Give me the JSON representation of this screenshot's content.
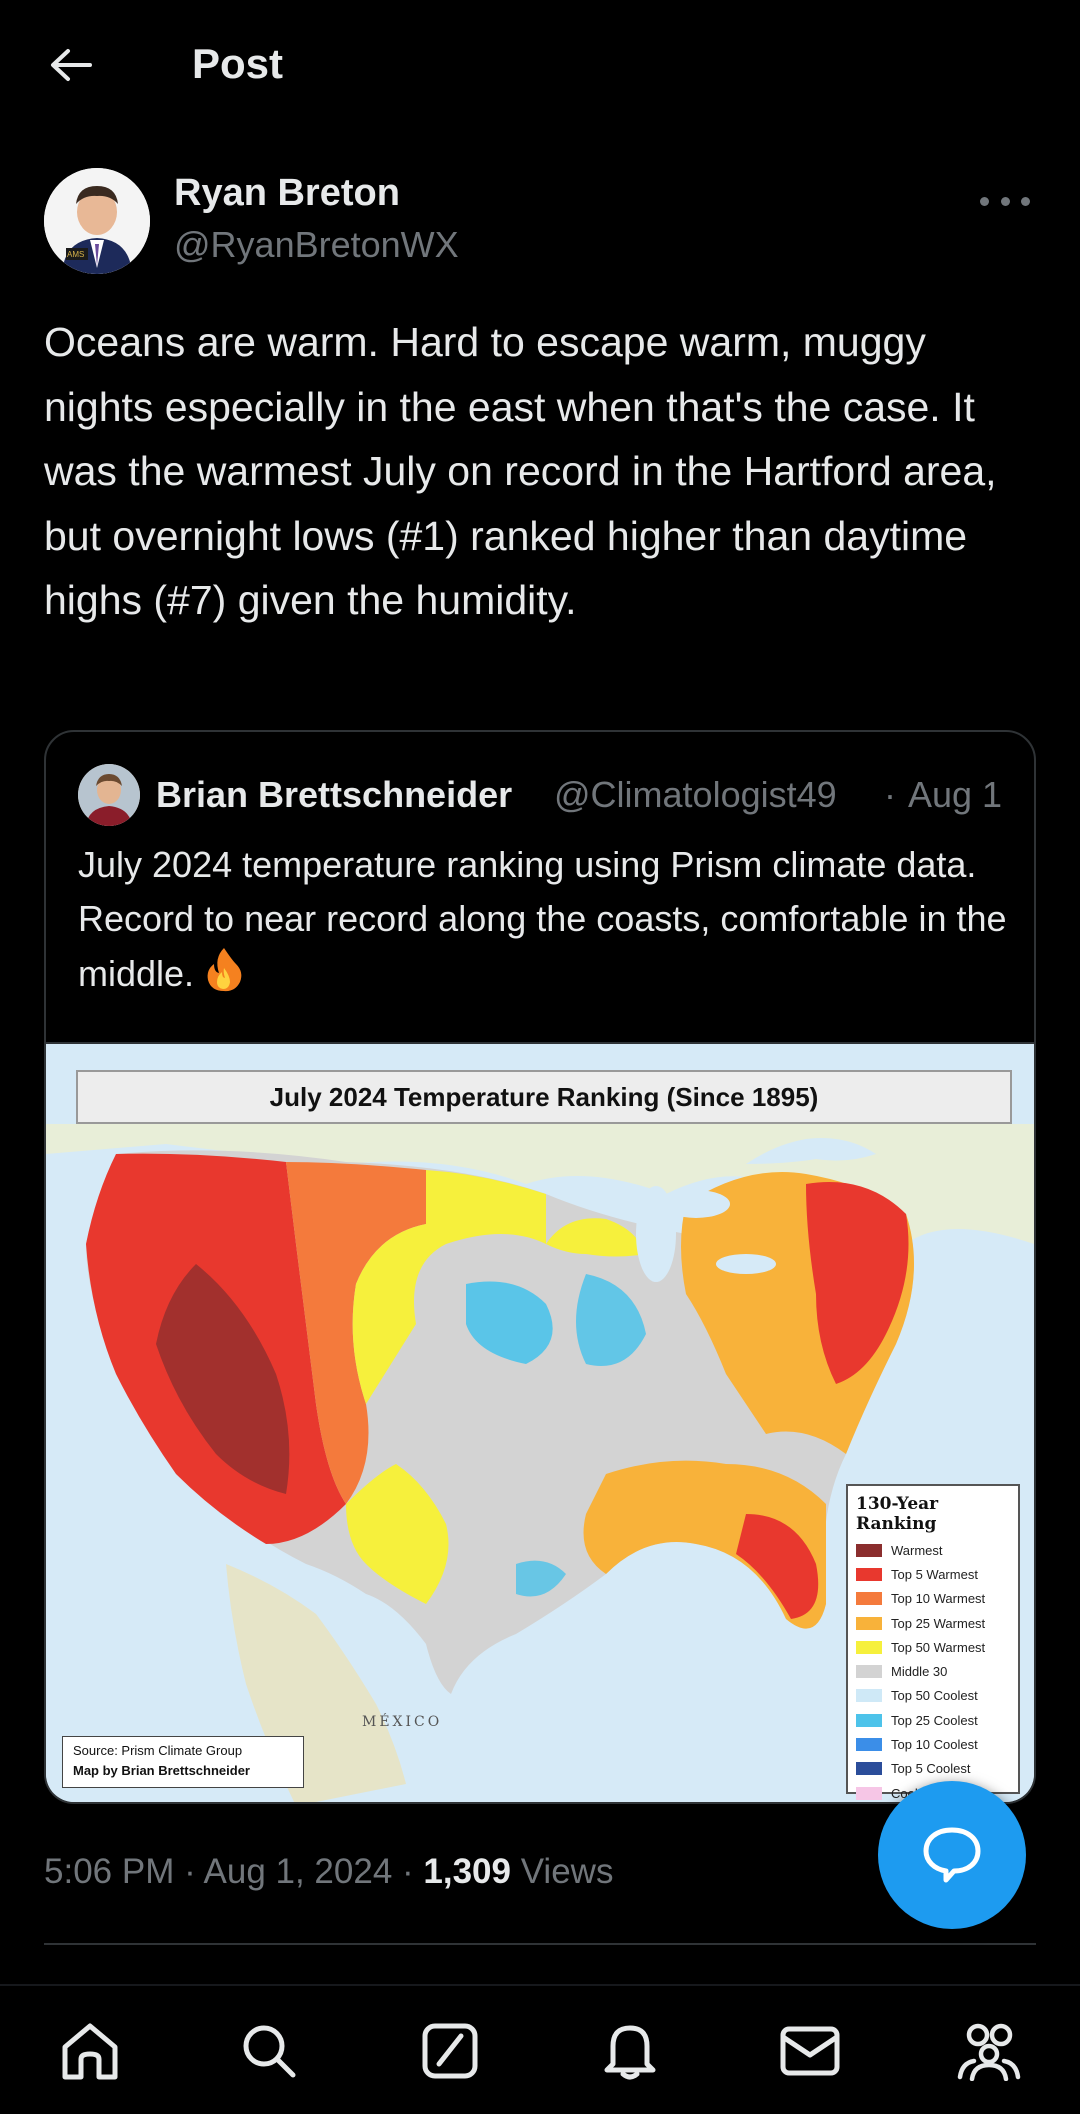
{
  "header": {
    "title": "Post",
    "back_icon": "arrow-left-icon"
  },
  "author": {
    "name": "Ryan Breton",
    "handle": "@RyanBretonWX",
    "avatar_badge": "AMS"
  },
  "post": {
    "text": "Oceans are warm. Hard to escape warm, muggy nights especially in the east when that's the case. It was the warmest July on record in the Hartford area, but overnight lows (#1) ranked higher than daytime highs (#7) given the humidity."
  },
  "quote": {
    "name": "Brian Brettschneider",
    "handle": "@Climatologist49",
    "date": "Aug 1",
    "separator": "·",
    "text": "July 2024 temperature ranking using Prism climate data. Record to near record along the coasts, comfortable in the middle.",
    "emoji_icon": "fire-icon",
    "image": {
      "title": "July 2024 Temperature Ranking (Since 1895)",
      "legend_title": "130-Year Ranking",
      "legend": [
        {
          "label": "Warmest",
          "color": "#8b2e2e"
        },
        {
          "label": "Top 5 Warmest",
          "color": "#e8382e"
        },
        {
          "label": "Top 10 Warmest",
          "color": "#f47a3c"
        },
        {
          "label": "Top 25 Warmest",
          "color": "#f8b23a"
        },
        {
          "label": "Top 50 Warmest",
          "color": "#f6f03c"
        },
        {
          "label": "Middle 30",
          "color": "#d3d3d3"
        },
        {
          "label": "Top 50 Coolest",
          "color": "#cfe9f7"
        },
        {
          "label": "Top 25 Coolest",
          "color": "#4dc3ea"
        },
        {
          "label": "Top 10 Coolest",
          "color": "#3b8ee8"
        },
        {
          "label": "Top 5 Coolest",
          "color": "#2b4d9a"
        },
        {
          "label": "Coolest",
          "color": "#f6c6e6"
        }
      ],
      "source_line1": "Source: Prism Climate Group",
      "source_line2": "Map by Brian Brettschneider",
      "map_label": "MÉXICO"
    }
  },
  "meta": {
    "time": "5:06 PM · Aug 1, 2024 · ",
    "views_count": "1,309",
    "views_label": " Views"
  },
  "colors": {
    "accent": "#1d9bf0",
    "background": "#000000",
    "secondary_text": "#71767b"
  },
  "bottom_nav": [
    {
      "icon": "home-icon"
    },
    {
      "icon": "search-icon"
    },
    {
      "icon": "grok-icon"
    },
    {
      "icon": "bell-icon"
    },
    {
      "icon": "mail-icon"
    },
    {
      "icon": "communities-icon"
    }
  ]
}
